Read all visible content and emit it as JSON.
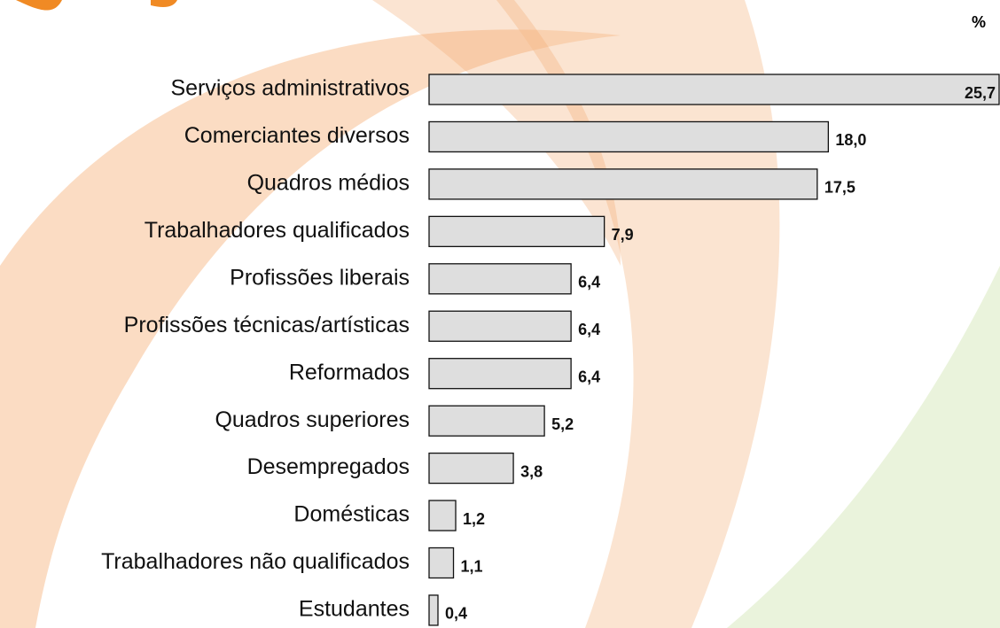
{
  "chart_data": {
    "type": "bar",
    "orientation": "horizontal",
    "unit": "%",
    "categories": [
      "Serviços administrativos",
      "Comerciantes diversos",
      "Quadros médios",
      "Trabalhadores qualificados",
      "Profissões liberais",
      "Profissões técnicas/artísticas",
      "Reformados",
      "Quadros superiores",
      "Desempregados",
      "Domésticas",
      "Trabalhadores não qualificados",
      "Estudantes"
    ],
    "values": [
      25.7,
      18.0,
      17.5,
      7.9,
      6.4,
      6.4,
      6.4,
      5.2,
      3.8,
      1.2,
      1.1,
      0.4
    ],
    "value_labels": [
      "25,7",
      "18,0",
      "17,5",
      "7,9",
      "6,4",
      "6,4",
      "6,4",
      "5,2",
      "3,8",
      "1,2",
      "1,1",
      "0,4"
    ],
    "color": "#dedede"
  }
}
